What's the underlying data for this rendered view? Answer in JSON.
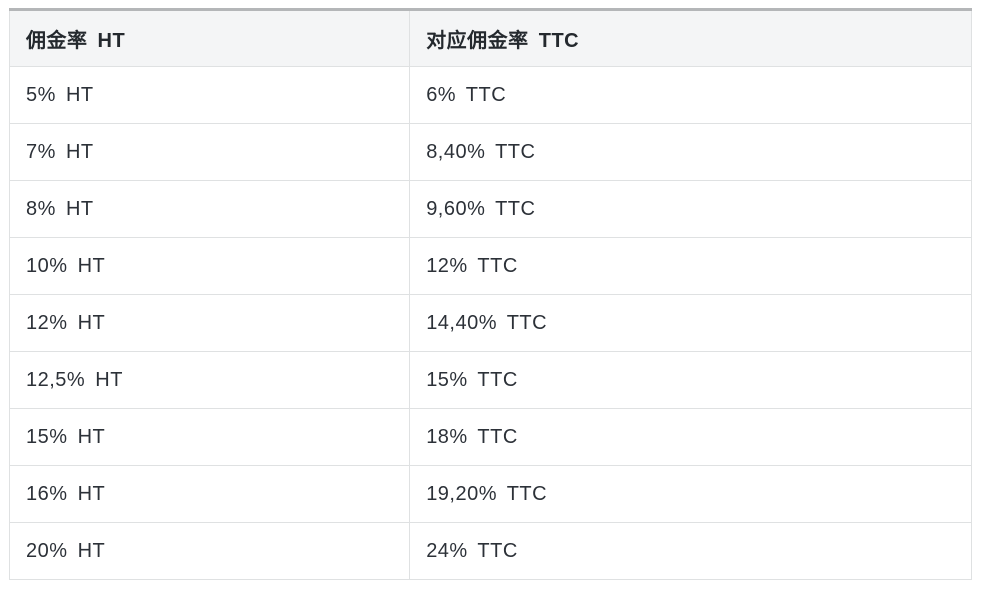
{
  "colors": {
    "page_background": "#ffffff",
    "top_accent_bar": "#b4b6b8",
    "header_background": "#f4f5f6",
    "cell_border": "#dfe1e2",
    "header_text": "#24292e",
    "cell_text": "#2c3138"
  },
  "table": {
    "headers": {
      "ht": "佣金率 HT",
      "ttc": "对应佣金率 TTC"
    },
    "rows": [
      {
        "ht": "5% HT",
        "ttc": "6% TTC"
      },
      {
        "ht": "7% HT",
        "ttc": "8,40% TTC"
      },
      {
        "ht": "8% HT",
        "ttc": "9,60% TTC"
      },
      {
        "ht": "10% HT",
        "ttc": "12% TTC"
      },
      {
        "ht": "12% HT",
        "ttc": "14,40% TTC"
      },
      {
        "ht": "12,5% HT",
        "ttc": "15% TTC"
      },
      {
        "ht": "15% HT",
        "ttc": "18% TTC"
      },
      {
        "ht": "16% HT",
        "ttc": "19,20% TTC"
      },
      {
        "ht": "20% HT",
        "ttc": "24% TTC"
      }
    ]
  },
  "chart_data": {
    "type": "table",
    "columns": [
      "佣金率 HT",
      "对应佣金率 TTC"
    ],
    "rows": [
      [
        "5% HT",
        "6% TTC"
      ],
      [
        "7% HT",
        "8,40% TTC"
      ],
      [
        "8% HT",
        "9,60% TTC"
      ],
      [
        "10% HT",
        "12% TTC"
      ],
      [
        "12% HT",
        "14,40% TTC"
      ],
      [
        "12,5% HT",
        "15% TTC"
      ],
      [
        "15% HT",
        "18% TTC"
      ],
      [
        "16% HT",
        "19,20% TTC"
      ],
      [
        "20% HT",
        "24% TTC"
      ]
    ],
    "ht_rates_percent": [
      5,
      7,
      8,
      10,
      12,
      12.5,
      15,
      16,
      20
    ],
    "ttc_rates_percent": [
      6,
      8.4,
      9.6,
      12,
      14.4,
      15,
      18,
      19.2,
      24
    ]
  }
}
